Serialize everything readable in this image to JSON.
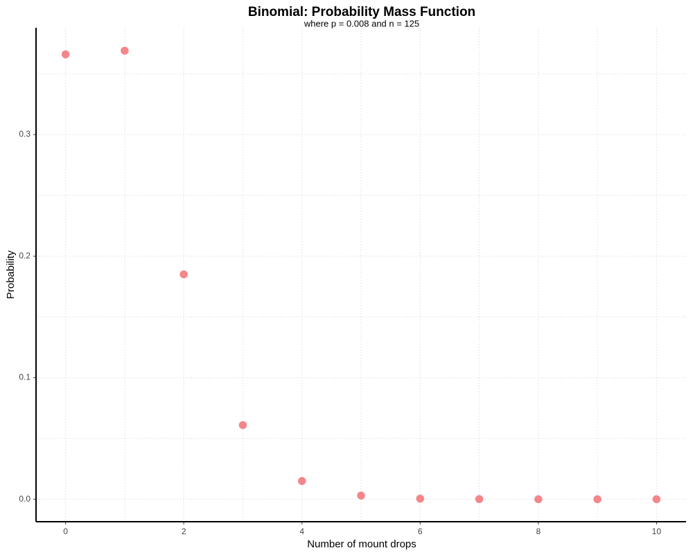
{
  "chart_data": {
    "type": "scatter",
    "title": "Binomial: Probability Mass Function",
    "subtitle": "where p = 0.008 and n = 125",
    "x_label": "Number of mount drops",
    "y_label": "Probability",
    "x": [
      0,
      1,
      2,
      3,
      4,
      5,
      6,
      7,
      8,
      9,
      10
    ],
    "series": [
      {
        "color": "#f4868a",
        "values": [
          0.366,
          0.369,
          0.185,
          0.061,
          0.015,
          0.003,
          0.0005,
          0.0001,
          0,
          0,
          0
        ]
      }
    ],
    "xlim": [
      -0.5,
      10.5
    ],
    "xticks": [
      0,
      2,
      4,
      6,
      8,
      10
    ],
    "minor_xticks": [
      1,
      3,
      5,
      7,
      9
    ],
    "ylim": [
      -0.0185,
      0.3879
    ],
    "yticks": [
      {
        "value": 0,
        "label": "0.0"
      },
      0.1,
      0.2,
      0.3
    ],
    "minor_yticks": [
      0.05,
      0.15,
      0.25,
      0.35
    ],
    "grid": true
  }
}
